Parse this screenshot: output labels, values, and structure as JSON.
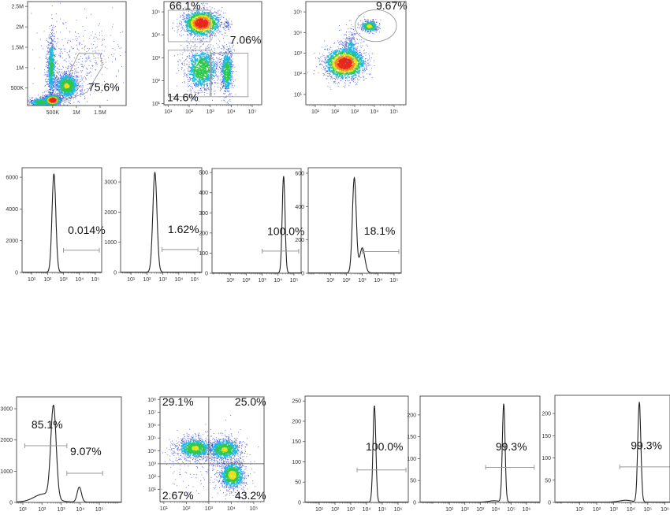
{
  "chart_data": [
    {
      "id": "fsc-ssc",
      "type": "scatter",
      "title": "",
      "x_scale": "linear",
      "y_scale": "linear",
      "units": "millions",
      "xlim": [
        -0.03,
        2.05
      ],
      "ylim": [
        0.07,
        2.62
      ],
      "x_ticks": [
        {
          "v": 0.5,
          "l": "500K"
        },
        {
          "v": 1,
          "l": "1M"
        },
        {
          "v": 1.5,
          "l": "1.5M"
        }
      ],
      "y_ticks": [
        {
          "v": 0.5,
          "l": "500K"
        },
        {
          "v": 1,
          "l": "1M"
        },
        {
          "v": 1.5,
          "l": "1.5M"
        },
        {
          "v": 2,
          "l": "2M"
        },
        {
          "v": 2.5,
          "l": "2.5M"
        }
      ],
      "clusters": [
        {
          "c": [
            0.5,
            0.2
          ],
          "s": [
            0.09,
            0.07
          ],
          "n": 900,
          "i": 1.0
        },
        {
          "c": [
            0.8,
            0.55
          ],
          "s": [
            0.14,
            0.18
          ],
          "n": 1100,
          "i": 0.55
        },
        {
          "c": [
            0.47,
            1.0
          ],
          "s": [
            0.05,
            0.45
          ],
          "n": 700,
          "i": 0.4
        },
        {
          "c": [
            1.1,
            1.3
          ],
          "s": [
            0.45,
            0.45
          ],
          "n": 350,
          "i": 0.1
        },
        {
          "c": [
            0.25,
            0.15
          ],
          "s": [
            0.15,
            0.06
          ],
          "n": 500,
          "i": 0.45
        }
      ],
      "gates": [
        {
          "shape": "polygon",
          "points": [
            [
              0.55,
              0.11
            ],
            [
              1.05,
              1.35
            ],
            [
              1.5,
              1.35
            ],
            [
              1.55,
              1.02
            ],
            [
              1.22,
              0.39
            ]
          ],
          "label": "75.6%",
          "label_at": [
            1.25,
            0.43
          ]
        }
      ]
    },
    {
      "id": "marker-gating",
      "type": "scatter",
      "x_scale": "log",
      "y_scale": "log",
      "xlim": [
        0.8,
        5.45
      ],
      "ylim": [
        0.95,
        5.45
      ],
      "x_ticks": [
        {
          "v": 1,
          "l": "10¹"
        },
        {
          "v": 2,
          "l": "10²"
        },
        {
          "v": 3,
          "l": "10³"
        },
        {
          "v": 4,
          "l": "10⁴"
        },
        {
          "v": 5,
          "l": "10⁵"
        }
      ],
      "y_ticks": [
        {
          "v": 1,
          "l": "10¹"
        },
        {
          "v": 2,
          "l": "10²"
        },
        {
          "v": 3,
          "l": "10³"
        },
        {
          "v": 4,
          "l": "10⁴"
        },
        {
          "v": 5,
          "l": "10⁵"
        }
      ],
      "clusters": [
        {
          "c": [
            2.6,
            4.5
          ],
          "s": [
            0.45,
            0.3
          ],
          "n": 1400,
          "i": 1.0
        },
        {
          "c": [
            2.6,
            2.5
          ],
          "s": [
            0.45,
            0.55
          ],
          "n": 1100,
          "i": 0.5
        },
        {
          "c": [
            3.8,
            2.4
          ],
          "s": [
            0.15,
            0.55
          ],
          "n": 700,
          "i": 0.5
        },
        {
          "c": [
            3.8,
            4.4
          ],
          "s": [
            0.1,
            0.15
          ],
          "n": 60,
          "i": 0.2
        }
      ],
      "gates": [
        {
          "shape": "rect",
          "x": [
            1.0,
            3.0
          ],
          "y": [
            3.7,
            5.07
          ],
          "label": "66.1%",
          "label_at": [
            1.06,
            5.1
          ]
        },
        {
          "shape": "rect",
          "x": [
            1.0,
            3.0
          ],
          "y": [
            1.3,
            3.33
          ],
          "label": "14.6%",
          "label_at": [
            0.95,
            1.1
          ]
        },
        {
          "shape": "rect",
          "x": [
            3.05,
            4.8
          ],
          "y": [
            1.3,
            3.2
          ],
          "label": "7.06%",
          "label_at": [
            3.94,
            3.62
          ]
        }
      ]
    },
    {
      "id": "double-positive",
      "type": "scatter",
      "x_scale": "log",
      "y_scale": "log",
      "xlim": [
        0.52,
        5.6
      ],
      "ylim": [
        0.5,
        5.5
      ],
      "x_ticks": [
        {
          "v": 1,
          "l": "10¹"
        },
        {
          "v": 2,
          "l": "10²"
        },
        {
          "v": 3,
          "l": "10³"
        },
        {
          "v": 4,
          "l": "10⁴"
        },
        {
          "v": 5,
          "l": "10⁵"
        }
      ],
      "y_ticks": [
        {
          "v": 1,
          "l": "10¹"
        },
        {
          "v": 2,
          "l": "10²"
        },
        {
          "v": 3,
          "l": "10³"
        },
        {
          "v": 4,
          "l": "10⁴"
        },
        {
          "v": 5,
          "l": "10⁵"
        }
      ],
      "clusters": [
        {
          "c": [
            2.5,
            2.5
          ],
          "s": [
            0.55,
            0.4
          ],
          "n": 1500,
          "i": 1.0
        },
        {
          "c": [
            2.8,
            3.0
          ],
          "s": [
            0.25,
            0.6
          ],
          "n": 500,
          "i": 0.3
        },
        {
          "c": [
            3.75,
            4.3
          ],
          "s": [
            0.22,
            0.15
          ],
          "n": 400,
          "i": 0.6
        }
      ],
      "gates": [
        {
          "shape": "ellipse",
          "c": [
            4.07,
            4.33
          ],
          "r": [
            1.05,
            0.77
          ],
          "label": "9.67%",
          "label_at": [
            4.08,
            5.12
          ]
        }
      ]
    },
    {
      "id": "hist-1",
      "type": "histogram",
      "xlim": [
        0.4,
        5.4
      ],
      "ylim": [
        0,
        6600
      ],
      "x_ticks": [
        {
          "v": 1,
          "l": "10¹"
        },
        {
          "v": 2,
          "l": "10²"
        },
        {
          "v": 3,
          "l": "10³"
        },
        {
          "v": 4,
          "l": "10⁴"
        },
        {
          "v": 5,
          "l": "10⁵"
        }
      ],
      "y_ticks": [
        {
          "v": 0,
          "l": "0"
        },
        {
          "v": 2000,
          "l": "2000"
        },
        {
          "v": 4000,
          "l": "4000"
        },
        {
          "v": 6000,
          "l": "6000"
        }
      ],
      "peaks": [
        {
          "mu": 2.4,
          "sigma": 0.12,
          "h": 6200
        }
      ],
      "gates": [
        {
          "x": [
            3.0,
            5.25
          ],
          "y": 1400,
          "label": "0.014%",
          "label_at": [
            3.28,
            2430
          ]
        }
      ]
    },
    {
      "id": "hist-2",
      "type": "histogram",
      "xlim": [
        0.35,
        5.44
      ],
      "ylim": [
        0,
        3470
      ],
      "x_ticks": [
        {
          "v": 1,
          "l": "10¹"
        },
        {
          "v": 2,
          "l": "10²"
        },
        {
          "v": 3,
          "l": "10³"
        },
        {
          "v": 4,
          "l": "10⁴"
        },
        {
          "v": 5,
          "l": "10⁵"
        }
      ],
      "y_ticks": [
        {
          "v": 0,
          "l": "0"
        },
        {
          "v": 1000,
          "l": "1000"
        },
        {
          "v": 2000,
          "l": "2000"
        },
        {
          "v": 3000,
          "l": "3000"
        }
      ],
      "peaks": [
        {
          "mu": 2.5,
          "sigma": 0.13,
          "h": 3300
        }
      ],
      "gates": [
        {
          "x": [
            2.95,
            5.2
          ],
          "y": 760,
          "label": "1.62%",
          "label_at": [
            3.31,
            1300
          ]
        }
      ]
    },
    {
      "id": "hist-3",
      "type": "histogram",
      "xlim": [
        -0.15,
        5.45
      ],
      "ylim": [
        0,
        520
      ],
      "x_ticks": [
        {
          "v": 1,
          "l": "10¹"
        },
        {
          "v": 2,
          "l": "10²"
        },
        {
          "v": 3,
          "l": "10³"
        },
        {
          "v": 4,
          "l": "10⁴"
        },
        {
          "v": 5,
          "l": "10⁵"
        }
      ],
      "y_ticks": [
        {
          "v": 0,
          "l": "0"
        },
        {
          "v": 100,
          "l": "100"
        },
        {
          "v": 200,
          "l": "200"
        },
        {
          "v": 300,
          "l": "300"
        },
        {
          "v": 400,
          "l": "400"
        },
        {
          "v": 500,
          "l": "500"
        }
      ],
      "peaks": [
        {
          "mu": 4.35,
          "sigma": 0.09,
          "h": 480
        }
      ],
      "gates": [
        {
          "x": [
            3.0,
            5.3
          ],
          "y": 110,
          "label": "100.0%",
          "label_at": [
            3.32,
            190
          ]
        }
      ]
    },
    {
      "id": "hist-4",
      "type": "histogram",
      "xlim": [
        -0.4,
        5.45
      ],
      "ylim": [
        0,
        633
      ],
      "x_ticks": [
        {
          "v": 1,
          "l": "10¹"
        },
        {
          "v": 2,
          "l": "10²"
        },
        {
          "v": 3,
          "l": "10³"
        },
        {
          "v": 4,
          "l": "10⁴"
        },
        {
          "v": 5,
          "l": "10⁵"
        }
      ],
      "y_ticks": [
        {
          "v": 0,
          "l": "0"
        },
        {
          "v": 200,
          "l": "200"
        },
        {
          "v": 400,
          "l": "400"
        },
        {
          "v": 600,
          "l": "600"
        }
      ],
      "peaks": [
        {
          "mu": 2.5,
          "sigma": 0.12,
          "h": 570
        },
        {
          "mu": 3.0,
          "sigma": 0.16,
          "h": 150
        }
      ],
      "gates": [
        {
          "x": [
            3.0,
            5.3
          ],
          "y": 130,
          "label": "18.1%",
          "label_at": [
            3.11,
            231
          ]
        }
      ]
    },
    {
      "id": "hist-5",
      "type": "histogram",
      "xlim": [
        0.67,
        6.15
      ],
      "ylim": [
        0,
        3380
      ],
      "x_ticks": [
        {
          "v": 1,
          "l": "10¹"
        },
        {
          "v": 2,
          "l": "10²"
        },
        {
          "v": 3,
          "l": "10³"
        },
        {
          "v": 4,
          "l": "10⁴"
        },
        {
          "v": 5,
          "l": "10⁵"
        }
      ],
      "y_ticks": [
        {
          "v": 0,
          "l": "0"
        },
        {
          "v": 1000,
          "l": "1000"
        },
        {
          "v": 2000,
          "l": "2000"
        },
        {
          "v": 3000,
          "l": "3000"
        }
      ],
      "peaks": [
        {
          "mu": 2.6,
          "sigma": 0.14,
          "h": 2950
        },
        {
          "mu": 2.1,
          "sigma": 0.5,
          "h": 260
        },
        {
          "mu": 3.95,
          "sigma": 0.11,
          "h": 480
        }
      ],
      "gates": [
        {
          "x": [
            1.1,
            3.3
          ],
          "y": 1816,
          "label": "85.1%",
          "label_at": [
            1.45,
            2370
          ]
        },
        {
          "x": [
            3.3,
            5.17
          ],
          "y": 933,
          "label": "9.07%",
          "label_at": [
            3.47,
            1513
          ]
        }
      ]
    },
    {
      "id": "quadrant-plot",
      "type": "scatter",
      "x_scale": "log",
      "y_scale": "log",
      "xlim": [
        0.83,
        5.46
      ],
      "ylim": [
        0.05,
        8.2
      ],
      "x_ticks": [
        {
          "v": 1,
          "l": "10¹"
        },
        {
          "v": 2,
          "l": "10²"
        },
        {
          "v": 3,
          "l": "10³"
        },
        {
          "v": 4,
          "l": "10⁴"
        },
        {
          "v": 5,
          "l": "10⁵"
        }
      ],
      "y_ticks": [
        {
          "v": 1,
          "l": "10¹"
        },
        {
          "v": 2,
          "l": "10²"
        },
        {
          "v": 3,
          "l": "10³"
        },
        {
          "v": 4,
          "l": "10⁴"
        },
        {
          "v": 5,
          "l": "10⁵"
        },
        {
          "v": 6,
          "l": "10⁶"
        },
        {
          "v": 7,
          "l": "10⁷"
        },
        {
          "v": 8,
          "l": "10⁸"
        }
      ],
      "clusters": [
        {
          "c": [
            2.4,
            4.2
          ],
          "s": [
            0.45,
            0.45
          ],
          "n": 900,
          "i": 0.55
        },
        {
          "c": [
            3.7,
            4.1
          ],
          "s": [
            0.4,
            0.45
          ],
          "n": 900,
          "i": 0.55
        },
        {
          "c": [
            4.05,
            2.1
          ],
          "s": [
            0.3,
            0.6
          ],
          "n": 900,
          "i": 0.6
        },
        {
          "c": [
            3.0,
            3.0
          ],
          "s": [
            1.0,
            1.2
          ],
          "n": 250,
          "i": 0.1
        }
      ],
      "gates": [
        {
          "shape": "quadrant",
          "x": 3.0,
          "y": 3.0,
          "labels": [
            {
              "label": "29.1%",
              "label_at": [
                0.93,
                7.52
              ]
            },
            {
              "label": "25.0%",
              "label_at": [
                4.16,
                7.52
              ]
            },
            {
              "label": "2.67%",
              "label_at": [
                0.93,
                0.22
              ]
            },
            {
              "label": "43.2%",
              "label_at": [
                4.16,
                0.22
              ]
            }
          ]
        }
      ]
    },
    {
      "id": "hist-6",
      "type": "histogram",
      "xlim": [
        0.1,
        6.65
      ],
      "ylim": [
        0,
        262
      ],
      "x_ticks": [
        {
          "v": 1,
          "l": "10¹"
        },
        {
          "v": 2,
          "l": "10²"
        },
        {
          "v": 3,
          "l": "10³"
        },
        {
          "v": 4,
          "l": "10⁴"
        },
        {
          "v": 5,
          "l": "10⁵"
        },
        {
          "v": 6,
          "l": "10⁶"
        }
      ],
      "y_ticks": [
        {
          "v": 0,
          "l": "0"
        },
        {
          "v": 50,
          "l": "50"
        },
        {
          "v": 100,
          "l": "100"
        },
        {
          "v": 150,
          "l": "150"
        },
        {
          "v": 200,
          "l": "200"
        },
        {
          "v": 250,
          "l": "250"
        }
      ],
      "peaks": [
        {
          "mu": 4.5,
          "sigma": 0.09,
          "h": 238
        }
      ],
      "gates": [
        {
          "x": [
            3.4,
            6.5
          ],
          "y": 80,
          "label": "100.0%",
          "label_at": [
            3.95,
            128
          ]
        }
      ]
    },
    {
      "id": "hist-7",
      "type": "histogram",
      "xlim": [
        -0.9,
        6.87
      ],
      "ylim": [
        0,
        243
      ],
      "x_ticks": [
        {
          "v": 1,
          "l": "10¹"
        },
        {
          "v": 2,
          "l": "10²"
        },
        {
          "v": 3,
          "l": "10³"
        },
        {
          "v": 4,
          "l": "10⁴"
        },
        {
          "v": 5,
          "l": "10⁵"
        },
        {
          "v": 6,
          "l": "10⁶"
        }
      ],
      "y_ticks": [
        {
          "v": 0,
          "l": "0"
        },
        {
          "v": 50,
          "l": "50"
        },
        {
          "v": 100,
          "l": "100"
        },
        {
          "v": 150,
          "l": "150"
        },
        {
          "v": 200,
          "l": "200"
        }
      ],
      "peaks": [
        {
          "mu": 4.52,
          "sigma": 0.09,
          "h": 225
        },
        {
          "mu": 3.9,
          "sigma": 0.3,
          "h": 3
        }
      ],
      "gates": [
        {
          "x": [
            3.35,
            6.5
          ],
          "y": 80,
          "label": "99.3%",
          "label_at": [
            4.0,
            119
          ]
        }
      ]
    },
    {
      "id": "hist-8",
      "type": "histogram",
      "xlim": [
        -0.45,
        6.3
      ],
      "ylim": [
        0,
        241
      ],
      "x_ticks": [
        {
          "v": 1,
          "l": "10¹"
        },
        {
          "v": 2,
          "l": "10²"
        },
        {
          "v": 3,
          "l": "10³"
        },
        {
          "v": 4,
          "l": "10⁴"
        },
        {
          "v": 5,
          "l": "10⁵"
        },
        {
          "v": 6,
          "l": "10⁶"
        }
      ],
      "y_ticks": [
        {
          "v": 0,
          "l": "0"
        },
        {
          "v": 50,
          "l": "50"
        },
        {
          "v": 100,
          "l": "100"
        },
        {
          "v": 150,
          "l": "150"
        },
        {
          "v": 200,
          "l": "200"
        }
      ],
      "peaks": [
        {
          "mu": 4.5,
          "sigma": 0.09,
          "h": 225
        },
        {
          "mu": 3.7,
          "sigma": 0.35,
          "h": 4
        }
      ],
      "gates": [
        {
          "x": [
            3.35,
            6.45
          ],
          "y": 80,
          "label": "99.3%",
          "label_at": [
            4.0,
            120
          ]
        }
      ]
    }
  ],
  "colors": {
    "axis": "#555555",
    "curve": "#222222",
    "gate": "#999999",
    "density": [
      "#1a2fd6",
      "#1fb8e0",
      "#2cc84a",
      "#e8e020",
      "#f08a1c",
      "#e8281c"
    ]
  }
}
